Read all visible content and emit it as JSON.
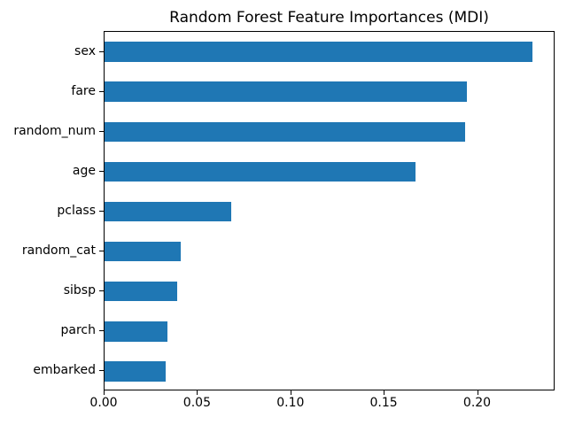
{
  "chart_data": {
    "type": "bar",
    "orientation": "horizontal",
    "title": "Random Forest Feature Importances (MDI)",
    "categories": [
      "sex",
      "fare",
      "random_num",
      "age",
      "pclass",
      "random_cat",
      "sibsp",
      "parch",
      "embarked"
    ],
    "values": [
      0.23,
      0.195,
      0.194,
      0.167,
      0.068,
      0.041,
      0.039,
      0.034,
      0.033
    ],
    "xlabel": "",
    "ylabel": "",
    "xticks": [
      0.0,
      0.05,
      0.1,
      0.15,
      0.2
    ],
    "xtick_labels": [
      "0.00",
      "0.05",
      "0.10",
      "0.15",
      "0.20"
    ],
    "xlim": [
      0,
      0.2415
    ],
    "grid": false,
    "legend": null,
    "bar_color": "#1f77b4",
    "spine_color": "#000000",
    "background_color": "#ffffff"
  }
}
